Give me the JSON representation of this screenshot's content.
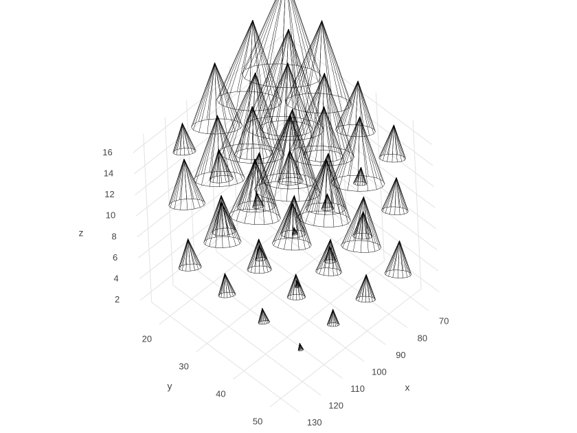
{
  "chart_data": {
    "type": "cone",
    "xaxis_title": "x",
    "yaxis_title": "y",
    "zaxis_title": "z",
    "xlim": [
      65,
      135
    ],
    "ylim": [
      15,
      55
    ],
    "zlim": [
      1,
      17
    ],
    "xticks": [
      70,
      80,
      90,
      100,
      110,
      120,
      130
    ],
    "yticks": [
      20,
      30,
      40,
      50
    ],
    "zticks": [
      2,
      4,
      6,
      8,
      10,
      12,
      14,
      16
    ],
    "grid": true,
    "color": "#000000",
    "x": [
      75,
      90,
      105,
      120,
      75,
      90,
      105,
      120,
      75,
      90,
      105,
      120,
      75,
      90,
      105,
      120,
      75,
      90,
      105,
      120,
      75,
      90,
      105,
      120,
      75,
      90,
      105,
      120,
      75,
      90,
      105,
      120,
      75,
      90,
      105,
      120,
      75,
      90,
      105,
      120,
      75,
      90,
      105,
      120,
      75,
      90,
      105,
      120
    ],
    "y": [
      20,
      20,
      20,
      20,
      30,
      30,
      30,
      30,
      40,
      40,
      40,
      40,
      50,
      50,
      50,
      50,
      20,
      20,
      20,
      20,
      30,
      30,
      30,
      30,
      40,
      40,
      40,
      40,
      50,
      50,
      50,
      50,
      20,
      20,
      20,
      20,
      30,
      30,
      30,
      30,
      40,
      40,
      40,
      40,
      50,
      50,
      50,
      50
    ],
    "z": [
      4,
      4,
      4,
      4,
      4,
      4,
      4,
      4,
      4,
      4,
      4,
      4,
      4,
      4,
      4,
      4,
      10,
      10,
      10,
      10,
      10,
      10,
      10,
      10,
      10,
      10,
      10,
      10,
      10,
      10,
      10,
      10,
      15,
      15,
      15,
      15,
      15,
      15,
      15,
      15,
      15,
      15,
      15,
      15,
      15,
      15,
      15,
      15
    ],
    "u": [
      -1,
      -0.5,
      0.5,
      1,
      -0.8,
      -0.4,
      0.4,
      0.8,
      -0.6,
      -0.3,
      0.3,
      0.6,
      -0.4,
      -0.2,
      0.2,
      0.4,
      -1,
      -0.5,
      0.5,
      1,
      -0.8,
      -0.4,
      0.4,
      0.8,
      -0.6,
      -0.3,
      0.3,
      0.6,
      -0.4,
      -0.2,
      0.2,
      0.4,
      -1,
      -0.5,
      0.5,
      1,
      -0.8,
      -0.4,
      0.4,
      0.8,
      -0.6,
      -0.3,
      0.3,
      0.6,
      -0.4,
      -0.2,
      0.2,
      0.4
    ],
    "v": [
      1,
      1,
      0.5,
      0.5,
      0.8,
      0.6,
      0.4,
      0.3,
      0.5,
      0.4,
      0.3,
      0.2,
      0.3,
      0.2,
      0.2,
      0.1,
      1,
      1,
      0.5,
      0.5,
      0.8,
      0.6,
      0.4,
      0.3,
      0.5,
      0.4,
      0.3,
      0.2,
      0.3,
      0.2,
      0.2,
      0.1,
      1,
      1,
      0.5,
      0.5,
      0.8,
      0.6,
      0.4,
      0.3,
      0.5,
      0.4,
      0.3,
      0.2,
      0.3,
      0.2,
      0.2,
      0.1
    ],
    "w": [
      5,
      4,
      3,
      2,
      4,
      3,
      2,
      1.5,
      3,
      2,
      1.5,
      1,
      2,
      1.5,
      1,
      0.5,
      6,
      5,
      4,
      3,
      5,
      4,
      3,
      2,
      4,
      3,
      2,
      1,
      2,
      1.5,
      1,
      0.5,
      6,
      5,
      4,
      2,
      5,
      4,
      3,
      2,
      3,
      3,
      2,
      1,
      2,
      1,
      1,
      0.5
    ]
  }
}
